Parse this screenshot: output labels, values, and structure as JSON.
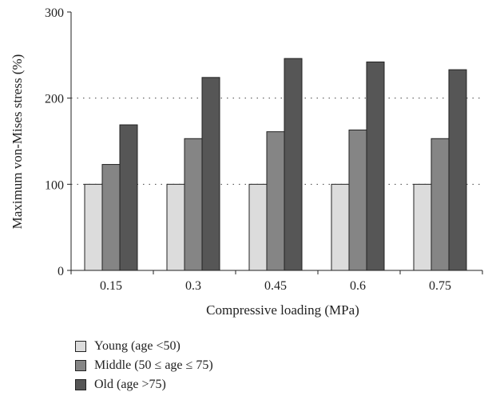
{
  "chart_data": {
    "type": "bar",
    "title": "",
    "xlabel": "Compressive loading (MPa)",
    "ylabel": "Maximum von-Mises stress (%)",
    "ylim": [
      0,
      300
    ],
    "yticks": [
      "0",
      "100",
      "200",
      "300"
    ],
    "grid": "horizontal dotted at 100 and 200",
    "legend_position": "bottom-left",
    "categories": [
      "0.15",
      "0.3",
      "0.45",
      "0.6",
      "0.75"
    ],
    "series": [
      {
        "name": "Young (age <50)",
        "color": "#dcdcdc",
        "values": [
          100,
          100,
          100,
          100,
          100
        ]
      },
      {
        "name": "Middle (50 ≤ age ≤ 75)",
        "color": "#858585",
        "values": [
          123,
          153,
          161,
          163,
          153
        ]
      },
      {
        "name": "Old (age >75)",
        "color": "#565656",
        "values": [
          169,
          224,
          246,
          242,
          233
        ]
      }
    ]
  }
}
